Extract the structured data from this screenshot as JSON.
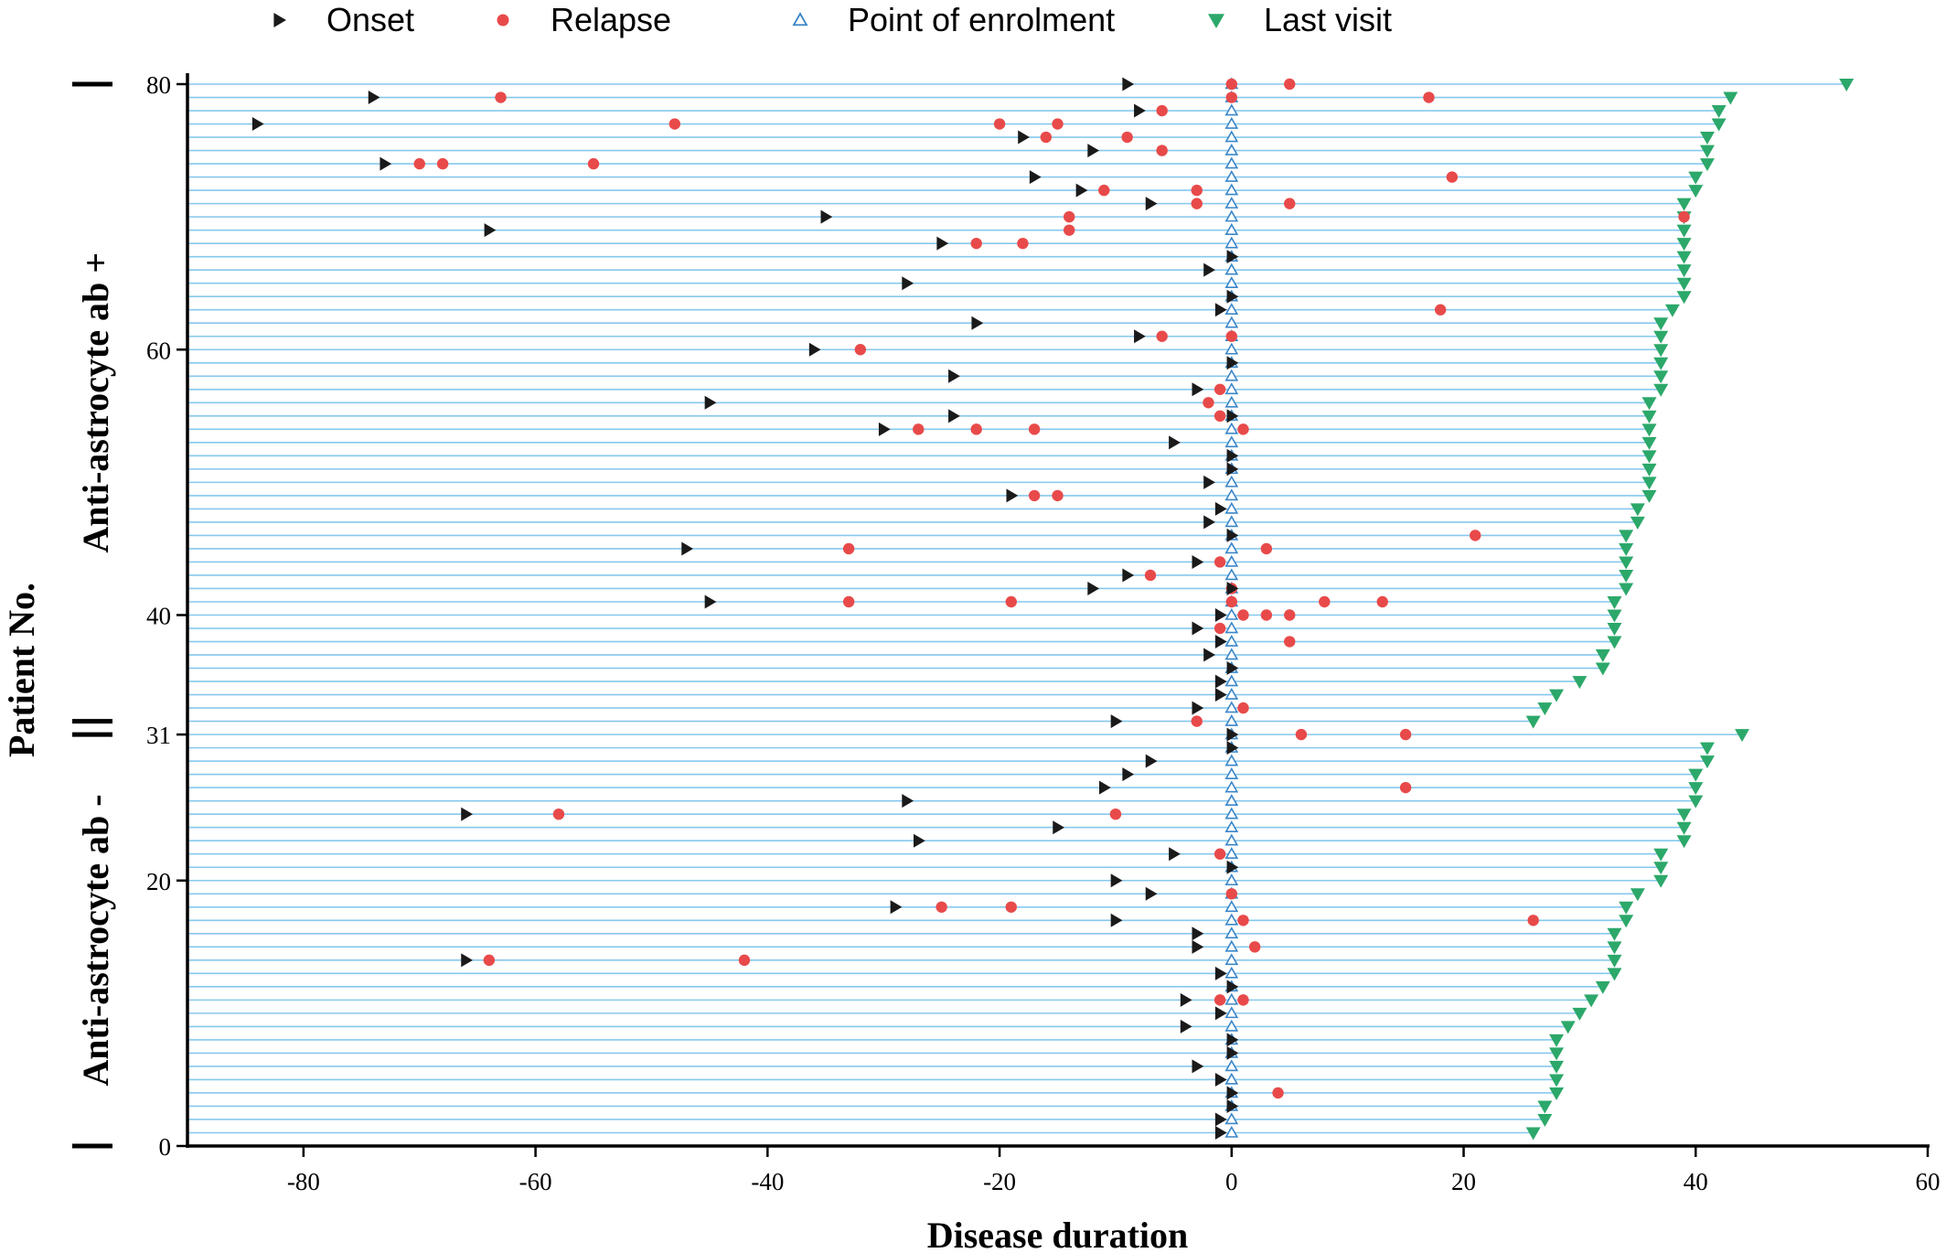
{
  "chart_data": {
    "type": "scatter",
    "xlabel": "Disease duration",
    "ylabel": "Patient No.",
    "xlim": [
      -90,
      60
    ],
    "ylim": [
      0,
      80
    ],
    "xticks": [
      -80,
      -60,
      -40,
      -20,
      0,
      20,
      40,
      60
    ],
    "yticks": [
      0,
      20,
      31,
      40,
      60,
      80
    ],
    "grid": "horizontal line per patient",
    "legend_position": "top",
    "groups": [
      {
        "label": "Anti-astrocyte ab -",
        "range": [
          0,
          31
        ]
      },
      {
        "label": "Anti-astrocyte ab +",
        "range": [
          32,
          80
        ]
      }
    ],
    "colors": {
      "onset": "#1a1a1a",
      "relapse": "#e84a4a",
      "enrolment": "#3a86c8",
      "last_visit": "#2ca86a",
      "patient_line": "#86c8ee"
    },
    "legend": [
      {
        "key": "onset",
        "label": "Onset"
      },
      {
        "key": "relapse",
        "label": "Relapse"
      },
      {
        "key": "enrolment",
        "label": "Point of enrolment"
      },
      {
        "key": "last_visit",
        "label": "Last visit"
      }
    ],
    "series": [
      {
        "name": "Onset",
        "points": [
          [
            -9,
            80
          ],
          [
            -74,
            79
          ],
          [
            -8,
            78
          ],
          [
            -84,
            77
          ],
          [
            -18,
            76
          ],
          [
            -12,
            75
          ],
          [
            -73,
            74
          ],
          [
            -17,
            73
          ],
          [
            -13,
            72
          ],
          [
            -7,
            71
          ],
          [
            -35,
            70
          ],
          [
            -64,
            69
          ],
          [
            -25,
            68
          ],
          [
            0,
            67
          ],
          [
            -2,
            66
          ],
          [
            -28,
            65
          ],
          [
            0,
            64
          ],
          [
            -1,
            63
          ],
          [
            -22,
            62
          ],
          [
            -8,
            61
          ],
          [
            -36,
            60
          ],
          [
            0,
            59
          ],
          [
            -24,
            58
          ],
          [
            -3,
            57
          ],
          [
            -45,
            56
          ],
          [
            0,
            55
          ],
          [
            -24,
            55
          ],
          [
            -30,
            54
          ],
          [
            -5,
            53
          ],
          [
            0,
            52
          ],
          [
            0,
            51
          ],
          [
            -2,
            50
          ],
          [
            -19,
            49
          ],
          [
            -1,
            48
          ],
          [
            -2,
            47
          ],
          [
            0,
            46
          ],
          [
            -47,
            45
          ],
          [
            -3,
            44
          ],
          [
            -9,
            43
          ],
          [
            0,
            42
          ],
          [
            -12,
            42
          ],
          [
            -45,
            41
          ],
          [
            -1,
            40
          ],
          [
            -3,
            39
          ],
          [
            -1,
            38
          ],
          [
            -2,
            37
          ],
          [
            0,
            36
          ],
          [
            -1,
            35
          ],
          [
            -1,
            34
          ],
          [
            -3,
            33
          ],
          [
            -10,
            32
          ],
          [
            0,
            31
          ],
          [
            0,
            30
          ],
          [
            -7,
            29
          ],
          [
            -9,
            28
          ],
          [
            -11,
            27
          ],
          [
            -28,
            26
          ],
          [
            -66,
            25
          ],
          [
            -15,
            24
          ],
          [
            -27,
            23
          ],
          [
            -5,
            22
          ],
          [
            0,
            21
          ],
          [
            -10,
            20
          ],
          [
            -7,
            19
          ],
          [
            -29,
            18
          ],
          [
            -10,
            17
          ],
          [
            -3,
            16
          ],
          [
            -3,
            15
          ],
          [
            -66,
            14
          ],
          [
            -1,
            13
          ],
          [
            0,
            12
          ],
          [
            -4,
            11
          ],
          [
            -1,
            10
          ],
          [
            -4,
            9
          ],
          [
            0,
            8
          ],
          [
            0,
            7
          ],
          [
            -3,
            6
          ],
          [
            -1,
            5
          ],
          [
            0,
            4
          ],
          [
            0,
            3
          ],
          [
            -1,
            2
          ],
          [
            -1,
            1
          ]
        ]
      },
      {
        "name": "Relapse",
        "points": [
          [
            0,
            80
          ],
          [
            5,
            80
          ],
          [
            -63,
            79
          ],
          [
            0,
            79
          ],
          [
            17,
            79
          ],
          [
            -6,
            78
          ],
          [
            -48,
            77
          ],
          [
            -20,
            77
          ],
          [
            -15,
            77
          ],
          [
            -16,
            76
          ],
          [
            -9,
            76
          ],
          [
            -70,
            74
          ],
          [
            -68,
            74
          ],
          [
            -55,
            74
          ],
          [
            -6,
            75
          ],
          [
            19,
            73
          ],
          [
            -11,
            72
          ],
          [
            -3,
            72
          ],
          [
            -3,
            71
          ],
          [
            5,
            71
          ],
          [
            -14,
            70
          ],
          [
            39,
            70
          ],
          [
            -14,
            69
          ],
          [
            -22,
            68
          ],
          [
            -18,
            68
          ],
          [
            18,
            63
          ],
          [
            -6,
            61
          ],
          [
            0,
            61
          ],
          [
            -32,
            60
          ],
          [
            -1,
            57
          ],
          [
            -2,
            56
          ],
          [
            -1,
            55
          ],
          [
            -27,
            54
          ],
          [
            -22,
            54
          ],
          [
            -17,
            54
          ],
          [
            1,
            54
          ],
          [
            -17,
            49
          ],
          [
            -15,
            49
          ],
          [
            21,
            46
          ],
          [
            -33,
            45
          ],
          [
            3,
            45
          ],
          [
            -1,
            44
          ],
          [
            -7,
            43
          ],
          [
            0,
            42
          ],
          [
            0,
            41
          ],
          [
            -33,
            41
          ],
          [
            -19,
            41
          ],
          [
            8,
            41
          ],
          [
            13,
            41
          ],
          [
            1,
            40
          ],
          [
            3,
            40
          ],
          [
            5,
            40
          ],
          [
            -1,
            39
          ],
          [
            5,
            38
          ],
          [
            1,
            33
          ],
          [
            -3,
            32
          ],
          [
            6,
            31
          ],
          [
            15,
            31
          ],
          [
            15,
            27
          ],
          [
            -58,
            25
          ],
          [
            -10,
            25
          ],
          [
            -1,
            22
          ],
          [
            0,
            19
          ],
          [
            -25,
            18
          ],
          [
            -19,
            18
          ],
          [
            1,
            17
          ],
          [
            26,
            17
          ],
          [
            2,
            15
          ],
          [
            -64,
            14
          ],
          [
            -42,
            14
          ],
          [
            -1,
            11
          ],
          [
            1,
            11
          ],
          [
            4,
            4
          ]
        ]
      },
      {
        "name": "Point of enrolment",
        "x_constant": 0,
        "y_range": [
          1,
          80
        ]
      },
      {
        "name": "Last visit",
        "values": [
          26,
          27,
          27,
          28,
          28,
          28,
          28,
          28,
          29,
          30,
          31,
          32,
          33,
          33,
          33,
          33,
          34,
          34,
          35,
          37,
          37,
          37,
          39,
          39,
          39,
          40,
          40,
          40,
          41,
          41,
          44,
          26,
          27,
          28,
          30,
          32,
          32,
          33,
          33,
          33,
          33,
          34,
          34,
          34,
          34,
          34,
          35,
          35,
          36,
          36,
          36,
          36,
          36,
          36,
          36,
          36,
          37,
          37,
          37,
          37,
          37,
          37,
          38,
          39,
          39,
          39,
          39,
          39,
          39,
          39,
          39,
          40,
          40,
          41,
          41,
          41,
          42,
          42,
          43,
          53
        ]
      }
    ]
  }
}
